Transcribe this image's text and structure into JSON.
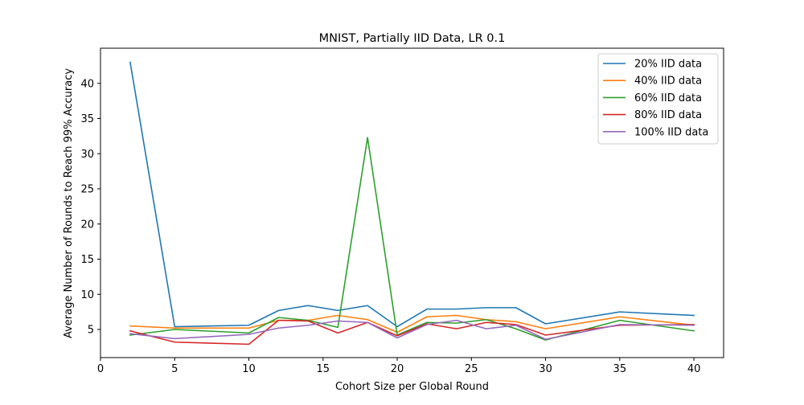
{
  "chart_data": {
    "type": "line",
    "title": "MNIST, Partially IID Data, LR 0.1",
    "xlabel": "Cohort Size per Global Round",
    "ylabel": "Average Number of Rounds to Reach 99% Accuracy",
    "xlim": [
      0,
      42
    ],
    "ylim": [
      1,
      45
    ],
    "xticks": [
      0,
      5,
      10,
      15,
      20,
      25,
      30,
      35,
      40
    ],
    "yticks": [
      5,
      10,
      15,
      20,
      25,
      30,
      35,
      40
    ],
    "grid": false,
    "legend_position": "top-right",
    "x": [
      2,
      5,
      10,
      12,
      14,
      16,
      18,
      20,
      22,
      24,
      26,
      28,
      30,
      35,
      40
    ],
    "series": [
      {
        "name": "20% IID data",
        "color": "#1f77b4",
        "values": [
          43.0,
          5.4,
          5.6,
          7.7,
          8.4,
          7.7,
          8.4,
          5.4,
          7.9,
          7.9,
          8.1,
          8.1,
          5.8,
          7.5,
          7.0
        ]
      },
      {
        "name": "40% IID data",
        "color": "#ff7f0e",
        "values": [
          5.5,
          5.2,
          5.2,
          6.3,
          6.3,
          7.0,
          6.4,
          4.6,
          6.8,
          7.0,
          6.4,
          6.1,
          5.1,
          6.8,
          5.6
        ]
      },
      {
        "name": "60% IID data",
        "color": "#2ca02c",
        "values": [
          4.2,
          5.0,
          4.5,
          6.7,
          6.3,
          5.3,
          32.3,
          4.2,
          6.0,
          5.9,
          6.4,
          5.1,
          3.5,
          6.3,
          4.8
        ]
      },
      {
        "name": "80% IID data",
        "color": "#d62728",
        "values": [
          4.8,
          3.2,
          2.9,
          6.3,
          6.2,
          4.5,
          6.0,
          4.1,
          5.8,
          5.1,
          6.0,
          5.7,
          4.2,
          5.6,
          5.7
        ]
      },
      {
        "name": "100% IID data",
        "color": "#9467bd",
        "values": [
          4.4,
          3.7,
          4.3,
          5.2,
          5.6,
          6.2,
          6.0,
          3.8,
          5.7,
          6.3,
          5.1,
          5.6,
          3.6,
          5.7,
          5.6
        ]
      }
    ]
  }
}
